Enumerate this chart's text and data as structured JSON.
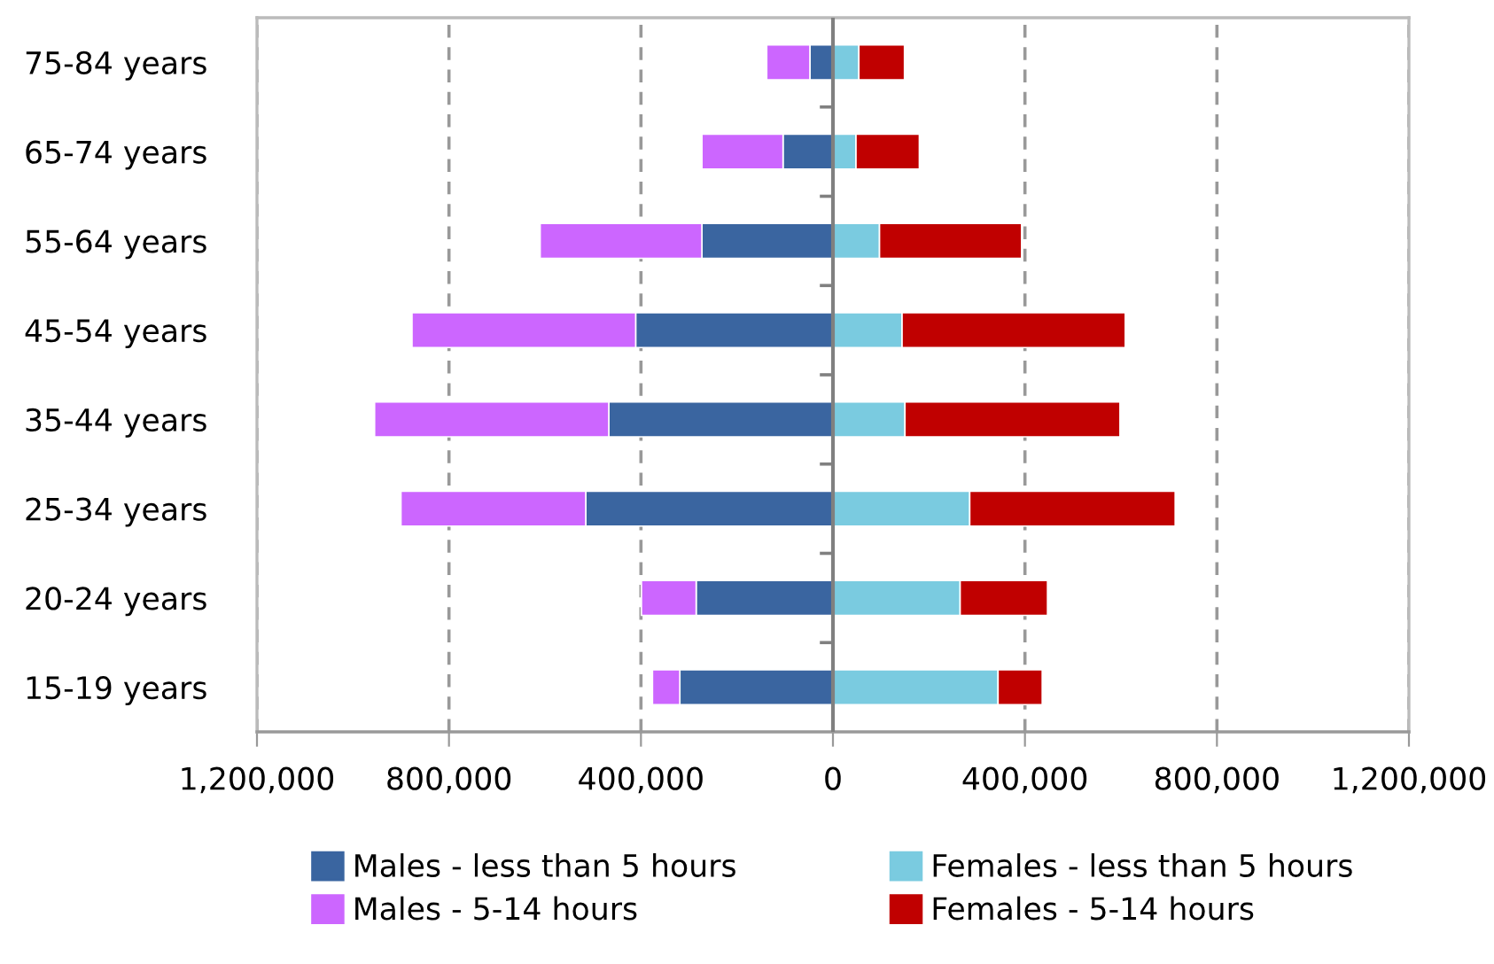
{
  "chart_data": {
    "type": "bar",
    "orientation": "horizontal",
    "stacked": true,
    "categories": [
      "75-84 years",
      "65-74 years",
      "55-64 years",
      "45-54 years",
      "35-44 years",
      "25-34 years",
      "20-24 years",
      "15-19 years"
    ],
    "series": [
      {
        "name": "Males - less than 5 hours",
        "color": "#3a65a0",
        "values": [
          -48000,
          -104000,
          -273000,
          -411000,
          -467000,
          -515000,
          -285000,
          -319000
        ]
      },
      {
        "name": "Males - 5-14 hours",
        "color": "#cc66ff",
        "values": [
          -90000,
          -169000,
          -337000,
          -466000,
          -488000,
          -385000,
          -114000,
          -57000
        ]
      },
      {
        "name": "Females - less than 5 hours",
        "color": "#7acbe0",
        "values": [
          54000,
          48000,
          97000,
          144000,
          150000,
          285000,
          265000,
          344000
        ]
      },
      {
        "name": "Females - 5-14 hours",
        "color": "#c00000",
        "values": [
          95000,
          132000,
          296000,
          465000,
          448000,
          428000,
          182000,
          92000
        ]
      }
    ],
    "xlim": [
      -1200000,
      1200000
    ],
    "xticks": [
      {
        "value": -1200000,
        "label": "1,200,000"
      },
      {
        "value": -800000,
        "label": "800,000"
      },
      {
        "value": -400000,
        "label": "400,000"
      },
      0,
      {
        "value": 400000,
        "label": "400,000"
      },
      {
        "value": 800000,
        "label": "800,000"
      },
      {
        "value": 1200000,
        "label": "1,200,000"
      }
    ],
    "grid": "x",
    "legend": "bottom"
  }
}
